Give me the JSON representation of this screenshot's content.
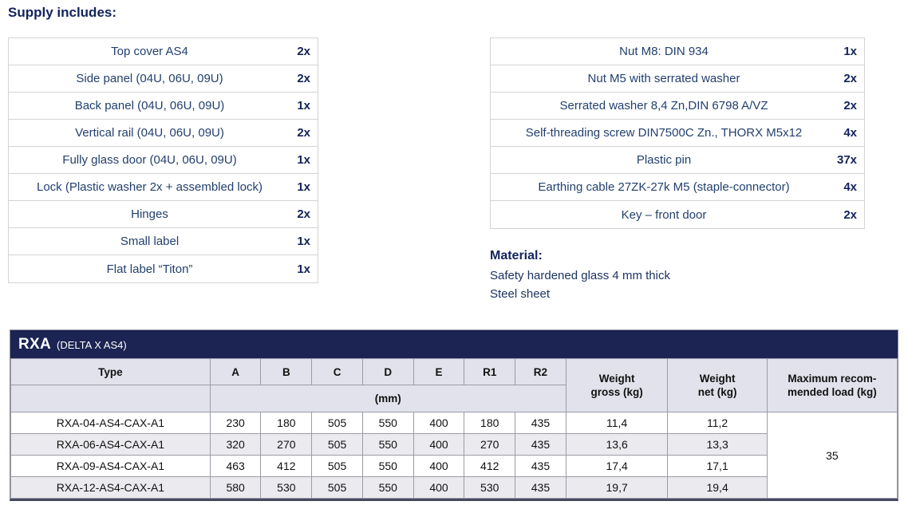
{
  "page": {
    "heading": "Supply includes:"
  },
  "supply_left": {
    "items": [
      {
        "label": "Top cover AS4",
        "qty": "2x"
      },
      {
        "label": "Side panel (04U, 06U, 09U)",
        "qty": "2x"
      },
      {
        "label": "Back panel (04U, 06U, 09U)",
        "qty": "1x"
      },
      {
        "label": "Vertical rail (04U, 06U, 09U)",
        "qty": "2x"
      },
      {
        "label": "Fully glass door (04U, 06U, 09U)",
        "qty": "1x"
      },
      {
        "label": "Lock (Plastic washer 2x + assembled lock)",
        "qty": "1x"
      },
      {
        "label": "Hinges",
        "qty": "2x"
      },
      {
        "label": "Small label",
        "qty": "1x"
      },
      {
        "label": "Flat label “Titon”",
        "qty": "1x"
      }
    ]
  },
  "supply_right": {
    "items": [
      {
        "label": "Nut M8: DIN 934",
        "qty": "1x"
      },
      {
        "label": "Nut M5 with serrated washer",
        "qty": "2x"
      },
      {
        "label": "Serrated washer 8,4 Zn,DIN 6798 A/VZ",
        "qty": "2x"
      },
      {
        "label": "Self-threading screw DIN7500C Zn., THORX M5x12",
        "qty": "4x"
      },
      {
        "label": "Plastic pin",
        "qty": "37x"
      },
      {
        "label": "Earthing cable 27ZK-27k M5 (staple-connector)",
        "qty": "4x"
      },
      {
        "label": "Key – front door",
        "qty": "2x"
      }
    ]
  },
  "material": {
    "heading": "Material:",
    "lines": [
      "Safety hardened glass 4 mm thick",
      "Steel sheet"
    ]
  },
  "spec": {
    "title": "RXA",
    "subtitle": "(DELTA X AS4)",
    "type_header": "Type",
    "dim_headers": [
      "A",
      "B",
      "C",
      "D",
      "E",
      "R1",
      "R2"
    ],
    "unit_label": "(mm)",
    "weight_gross_line1": "Weight",
    "weight_gross_line2": "gross (kg)",
    "weight_net_line1": "Weight",
    "weight_net_line2": "net (kg)",
    "max_load_line1": "Maximum recom-",
    "max_load_line2": "mended load (kg)",
    "max_load_value": "35",
    "rows": [
      {
        "type": "RXA-04-AS4-CAX-A1",
        "a": "230",
        "b": "180",
        "c": "505",
        "d": "550",
        "e": "400",
        "r1": "180",
        "r2": "435",
        "gross": "11,4",
        "net": "11,2"
      },
      {
        "type": "RXA-06-AS4-CAX-A1",
        "a": "320",
        "b": "270",
        "c": "505",
        "d": "550",
        "e": "400",
        "r1": "270",
        "r2": "435",
        "gross": "13,6",
        "net": "13,3"
      },
      {
        "type": "RXA-09-AS4-CAX-A1",
        "a": "463",
        "b": "412",
        "c": "505",
        "d": "550",
        "e": "400",
        "r1": "412",
        "r2": "435",
        "gross": "17,4",
        "net": "17,1"
      },
      {
        "type": "RXA-12-AS4-CAX-A1",
        "a": "580",
        "b": "530",
        "c": "505",
        "d": "550",
        "e": "400",
        "r1": "530",
        "r2": "435",
        "gross": "19,7",
        "net": "19,4"
      }
    ]
  },
  "colors": {
    "navy": "#1b2452",
    "heading_text": "#13235b",
    "body_text": "#23406e",
    "header_bg": "#e2e2ec",
    "alt_row_bg": "#ebebef",
    "border_light": "#d4d4d4",
    "border_dark": "#9b9ba7"
  }
}
